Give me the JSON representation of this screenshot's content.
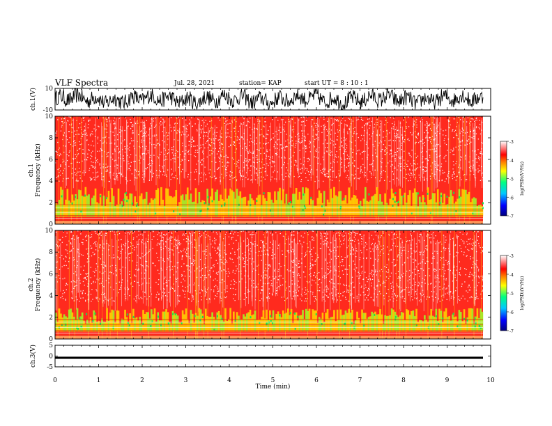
{
  "header": {
    "title": "VLF Spectra",
    "date": "Jul. 28, 2021",
    "station": "station= KAP",
    "start": "start UT = 8 : 10 : 1"
  },
  "colors": {
    "spectrogram_background": "#ff2a1e",
    "colorbar_stops": [
      "#000080",
      "#0000ff",
      "#00c8ff",
      "#00ff80",
      "#ffff00",
      "#ff8000",
      "#ff0000",
      "#ffffff"
    ]
  },
  "chart_data": [
    {
      "type": "line",
      "panel": "ch1-waveform",
      "ylabel": "ch.1(V)",
      "ylim": [
        -10,
        10
      ],
      "yticks": [
        "10",
        "-10"
      ],
      "x": [
        0,
        0.5,
        1,
        1.5,
        2,
        2.5,
        3,
        3.5,
        4,
        4.5,
        5,
        5.5,
        6,
        6.5,
        7,
        7.5,
        8,
        8.5,
        9,
        9.5,
        9.8
      ],
      "values": [
        4,
        -3,
        5,
        -4,
        3,
        -5,
        4,
        -2,
        5,
        -4,
        3,
        -5,
        4,
        -3,
        5,
        -4,
        3,
        -5,
        4,
        -3,
        2
      ],
      "envelope": [
        -10,
        10
      ],
      "xlim": [
        0,
        9.8
      ]
    },
    {
      "type": "heatmap",
      "panel": "ch1-spectrogram",
      "ylabel": "ch.1 Frequency (kHz)",
      "ylim": [
        0,
        10
      ],
      "yticks": [
        "0",
        "2",
        "4",
        "6",
        "8",
        "10"
      ],
      "xlim": [
        0,
        9.8
      ],
      "colorbar": {
        "label": "log(PSD)(V²/Hz)",
        "range": [
          -7,
          -3
        ],
        "ticks": [
          "-3",
          "-4",
          "-5",
          "-6",
          "-7"
        ]
      },
      "background_level": -3.5,
      "emission_band_khz": [
        0.5,
        3.0
      ]
    },
    {
      "type": "heatmap",
      "panel": "ch2-spectrogram",
      "ylabel": "ch.2 Frequency (kHz)",
      "ylim": [
        0,
        10
      ],
      "yticks": [
        "0",
        "2",
        "4",
        "6",
        "8",
        "10"
      ],
      "xlim": [
        0,
        9.8
      ],
      "colorbar": {
        "label": "log(PSD)(V²/Hz)",
        "range": [
          -7,
          -3
        ],
        "ticks": [
          "-3",
          "-4",
          "-5",
          "-6",
          "-7"
        ]
      },
      "background_level": -3.5,
      "emission_band_khz": [
        0.5,
        2.5
      ]
    },
    {
      "type": "line",
      "panel": "ch3-waveform",
      "ylabel": "ch.3(V)",
      "ylim": [
        -5,
        5
      ],
      "yticks": [
        "5",
        "0",
        "-5"
      ],
      "x": [
        0,
        9.8
      ],
      "values": [
        -0.8,
        -0.8
      ],
      "band": [
        -1.3,
        -0.3
      ],
      "xlim": [
        0,
        9.8
      ]
    },
    {
      "type": "axis",
      "panel": "time-axis",
      "xlabel": "Time (min)",
      "xlim": [
        0,
        10
      ],
      "xticks": [
        "0",
        "1",
        "2",
        "3",
        "4",
        "5",
        "6",
        "7",
        "8",
        "9",
        "10"
      ]
    }
  ]
}
